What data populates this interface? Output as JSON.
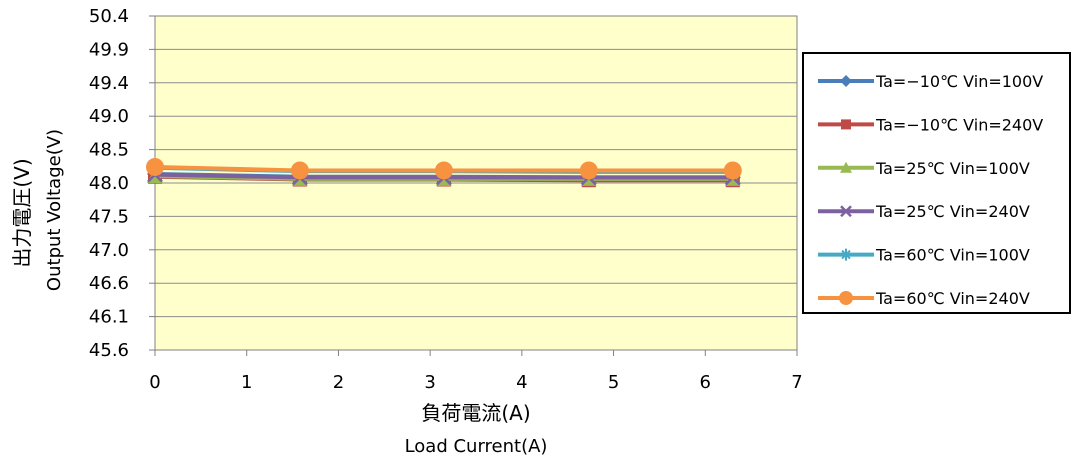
{
  "chart_data": {
    "type": "line",
    "xlabel": "負荷電流(A)",
    "xlabel_en": "Load Current(A)",
    "ylabel": "出力電圧(V)",
    "ylabel_en": "Output  Voltage(V)",
    "xlim": [
      0,
      7
    ],
    "ylim": [
      45.6,
      50.4
    ],
    "x_ticks": [
      "0",
      "1",
      "2",
      "3",
      "4",
      "5",
      "6",
      "7"
    ],
    "y_ticks": [
      "50.4",
      "49.9",
      "49.4",
      "49.0",
      "48.5",
      "48.0",
      "47.5",
      "47.0",
      "46.6",
      "46.1",
      "45.6"
    ],
    "grid": true,
    "legend_position": "right",
    "plot_background": "#ffffcc",
    "x": [
      0,
      1.58,
      3.15,
      4.73,
      6.3
    ],
    "series": [
      {
        "name": "Ta=−10℃ Vin=100V",
        "color": "#4a7ebb",
        "marker": "diamond",
        "values": [
          48.13,
          48.09,
          48.09,
          48.08,
          48.08
        ]
      },
      {
        "name": "Ta=−10℃ Vin=240V",
        "color": "#be4b48",
        "marker": "square",
        "values": [
          48.09,
          48.05,
          48.05,
          48.04,
          48.04
        ]
      },
      {
        "name": "Ta=25℃ Vin=100V",
        "color": "#98b954",
        "marker": "triangle",
        "values": [
          48.1,
          48.06,
          48.06,
          48.06,
          48.06
        ]
      },
      {
        "name": "Ta=25℃ Vin=240V",
        "color": "#7d60a0",
        "marker": "x",
        "values": [
          48.12,
          48.08,
          48.08,
          48.08,
          48.08
        ]
      },
      {
        "name": "Ta=60℃ Vin=100V",
        "color": "#46aac5",
        "marker": "star",
        "values": [
          48.22,
          48.17,
          48.17,
          48.16,
          48.16
        ]
      },
      {
        "name": "Ta=60℃ Vin=240V",
        "color": "#f69240",
        "marker": "circle",
        "values": [
          48.23,
          48.18,
          48.18,
          48.18,
          48.18
        ]
      }
    ]
  }
}
